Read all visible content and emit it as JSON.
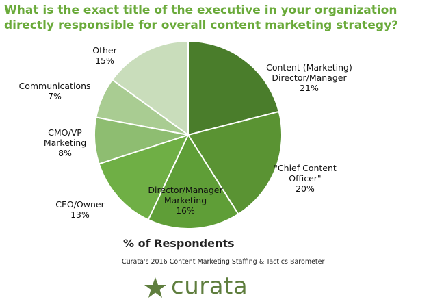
{
  "title": "What is the exact title of the executive in your organization directly responsible for overall content marketing strategy?",
  "source_note": "Curata's 2016 Content Marketing  Staffing & Tactics Barometer",
  "brand": {
    "name": "curata",
    "icon": "star-icon",
    "color": "#5f7e3e"
  },
  "title_color": "#6aaa3a",
  "chart_data": {
    "type": "pie",
    "title": "What is the exact title of the executive in your organization directly responsible for overall content marketing strategy?",
    "xlabel": "% of Respondents",
    "legend": "none",
    "start_angle_deg": 0,
    "direction": "clockwise",
    "slices": [
      {
        "label_lines": [
          "Content (Marketing)",
          "Director/Manager"
        ],
        "value": 21,
        "value_label": "21%",
        "color": "#4a7d2b"
      },
      {
        "label_lines": [
          "\"Chief Content",
          "Officer\""
        ],
        "value": 20,
        "value_label": "20%",
        "color": "#5a9333"
      },
      {
        "label_lines": [
          "Director/Manager",
          "Marketing"
        ],
        "value": 16,
        "value_label": "16%",
        "color": "#5f9e37"
      },
      {
        "label_lines": [
          "CEO/Owner"
        ],
        "value": 13,
        "value_label": "13%",
        "color": "#6faf45"
      },
      {
        "label_lines": [
          "CMO/VP",
          "Marketing"
        ],
        "value": 8,
        "value_label": "8%",
        "color": "#8ebd71"
      },
      {
        "label_lines": [
          "Communications"
        ],
        "value": 7,
        "value_label": "7%",
        "color": "#a9cc92"
      },
      {
        "label_lines": [
          "Other"
        ],
        "value": 15,
        "value_label": "15%",
        "color": "#c9ddbb"
      }
    ]
  }
}
